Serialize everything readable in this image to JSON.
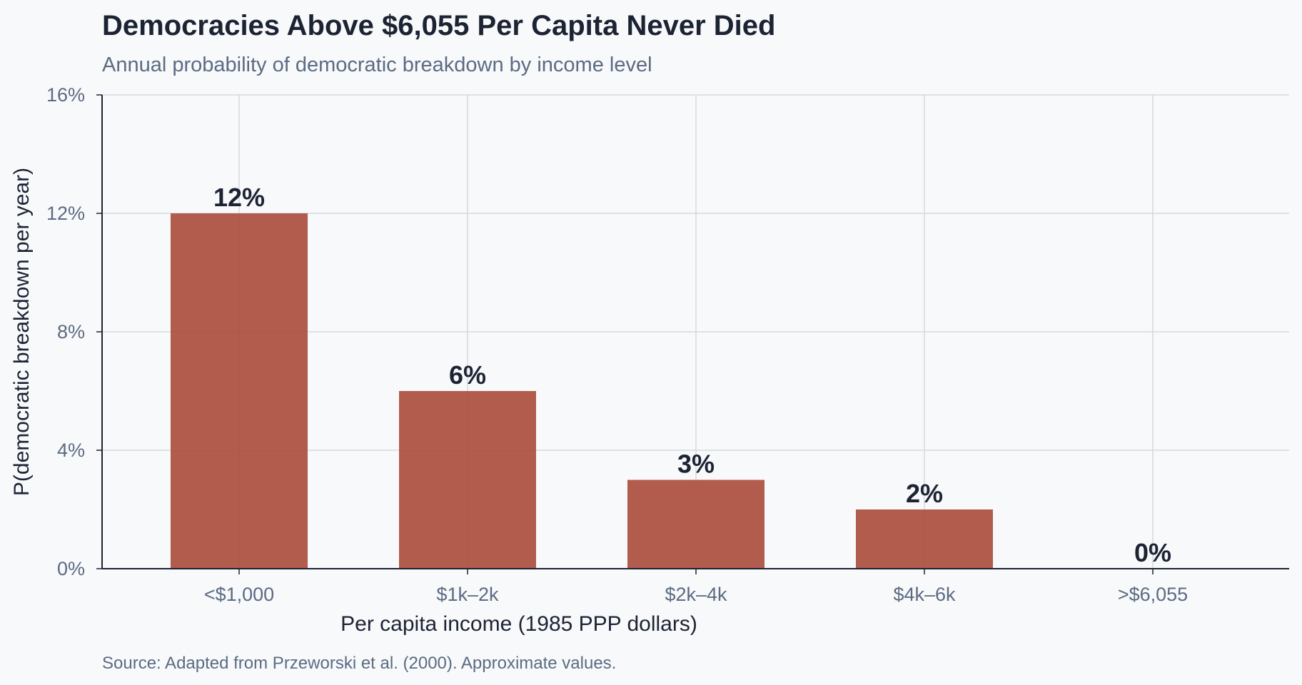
{
  "chart_data": {
    "type": "bar",
    "title": "Democracies Above $6,055 Per Capita Never Died",
    "subtitle": "Annual probability of democratic breakdown by income level",
    "xlabel": "Per capita income (1985 PPP dollars)",
    "ylabel": "P(democratic breakdown per year)",
    "categories": [
      "<$1,000",
      "$1k–2k",
      "$2k–4k",
      "$4k–6k",
      ">$6,055"
    ],
    "values": [
      12,
      6,
      3,
      2,
      0
    ],
    "data_labels": [
      "12%",
      "6%",
      "3%",
      "2%",
      "0%"
    ],
    "ylim": [
      0,
      16
    ],
    "yticks": [
      0,
      4,
      8,
      12,
      16
    ],
    "ytick_labels": [
      "0%",
      "4%",
      "8%",
      "12%",
      "16%"
    ],
    "grid": true,
    "bar_color": "#ad5342",
    "source": "Source: Adapted from Przeworski et al. (2000). Approximate values."
  }
}
